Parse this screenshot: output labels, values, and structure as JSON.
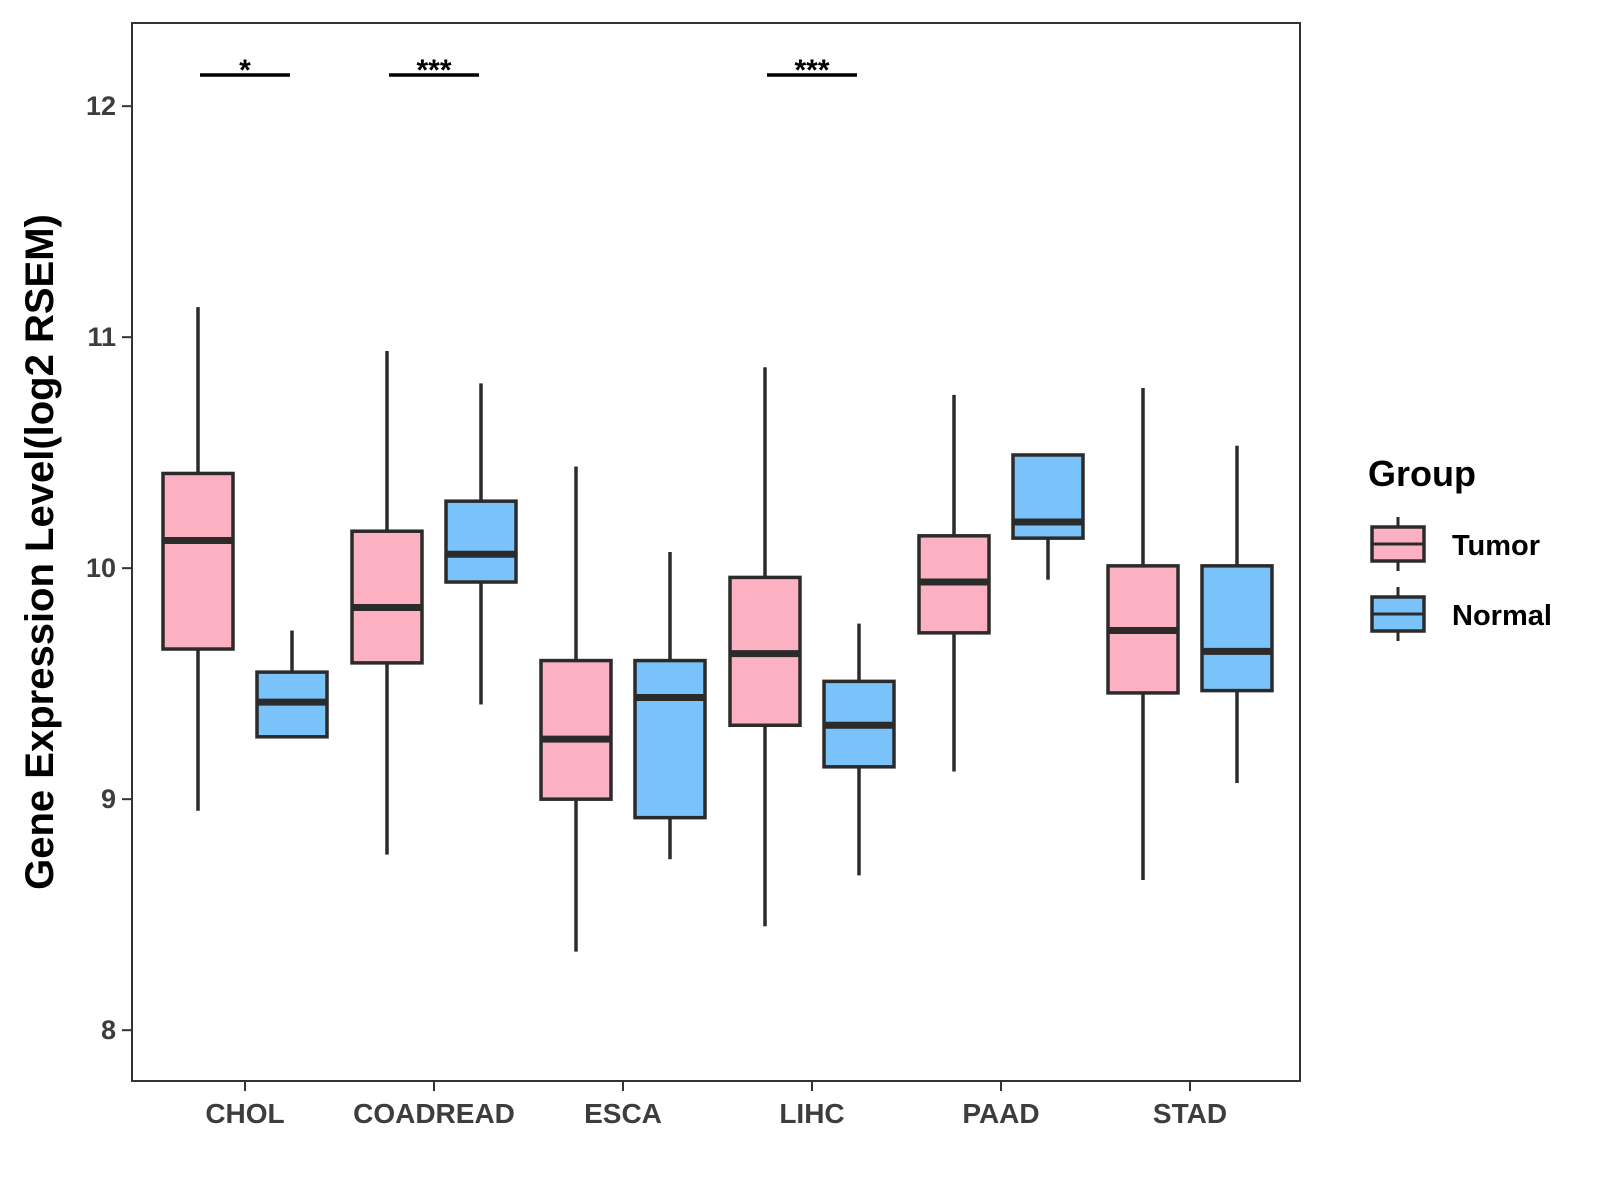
{
  "chart_data": {
    "type": "boxplot",
    "title": "",
    "xlabel": "",
    "ylabel": "Gene Expression Level(log2 RSEM)",
    "ylim": [
      7.78,
      12.36
    ],
    "yticks": [
      8,
      9,
      10,
      11,
      12
    ],
    "categories": [
      "CHOL",
      "COADREAD",
      "ESCA",
      "LIHC",
      "PAAD",
      "STAD"
    ],
    "legend": {
      "title": "Group",
      "position": "right"
    },
    "colors": {
      "Tumor": "#fcb1c3",
      "Normal": "#79c3fa",
      "outline": "#2b2b2b"
    },
    "series": [
      {
        "name": "Tumor",
        "boxes": [
          {
            "category": "CHOL",
            "min": 8.95,
            "q1": 9.65,
            "median": 10.12,
            "q3": 10.41,
            "max": 11.13
          },
          {
            "category": "COADREAD",
            "min": 8.76,
            "q1": 9.59,
            "median": 9.83,
            "q3": 10.16,
            "max": 10.94
          },
          {
            "category": "ESCA",
            "min": 8.34,
            "q1": 9.0,
            "median": 9.26,
            "q3": 9.6,
            "max": 10.44
          },
          {
            "category": "LIHC",
            "min": 8.45,
            "q1": 9.32,
            "median": 9.63,
            "q3": 9.96,
            "max": 10.87
          },
          {
            "category": "PAAD",
            "min": 9.12,
            "q1": 9.72,
            "median": 9.94,
            "q3": 10.14,
            "max": 10.75
          },
          {
            "category": "STAD",
            "min": 8.65,
            "q1": 9.46,
            "median": 9.73,
            "q3": 10.01,
            "max": 10.78
          }
        ]
      },
      {
        "name": "Normal",
        "boxes": [
          {
            "category": "CHOL",
            "min": 9.27,
            "q1": 9.27,
            "median": 9.42,
            "q3": 9.55,
            "max": 9.73
          },
          {
            "category": "COADREAD",
            "min": 9.41,
            "q1": 9.94,
            "median": 10.06,
            "q3": 10.29,
            "max": 10.8
          },
          {
            "category": "ESCA",
            "min": 8.74,
            "q1": 8.92,
            "median": 9.44,
            "q3": 9.6,
            "max": 10.07
          },
          {
            "category": "LIHC",
            "min": 8.67,
            "q1": 9.14,
            "median": 9.32,
            "q3": 9.51,
            "max": 9.76
          },
          {
            "category": "PAAD",
            "min": 9.95,
            "q1": 10.13,
            "median": 10.2,
            "q3": 10.49,
            "max": 10.49
          },
          {
            "category": "STAD",
            "min": 9.07,
            "q1": 9.47,
            "median": 9.64,
            "q3": 10.01,
            "max": 10.53
          }
        ]
      }
    ],
    "annotations": [
      {
        "category": "CHOL",
        "label": "*"
      },
      {
        "category": "COADREAD",
        "label": "***"
      },
      {
        "category": "LIHC",
        "label": "***"
      }
    ]
  }
}
